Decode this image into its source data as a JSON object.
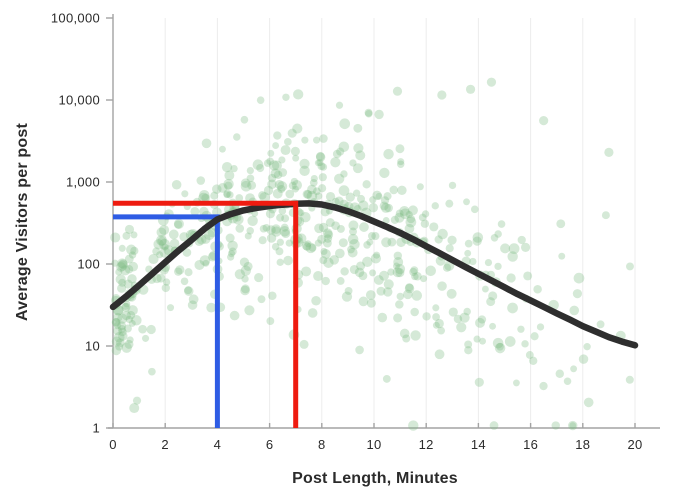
{
  "chart_data": {
    "type": "scatter",
    "title": "",
    "xlabel": "Post Length, Minutes",
    "ylabel": "Average Visitors per post",
    "x_axis": {
      "min": 0,
      "max": 20,
      "tick_labels": [
        "0",
        "2",
        "4",
        "6",
        "8",
        "10",
        "12",
        "14",
        "16",
        "18",
        "20"
      ],
      "tick_values": [
        0,
        2,
        4,
        6,
        8,
        10,
        12,
        14,
        16,
        18,
        20
      ]
    },
    "y_axis": {
      "scale": "log",
      "min": 1,
      "max": 100000,
      "tick_labels": [
        "1",
        "10",
        "100",
        "1,000",
        "10,000",
        "100,000"
      ],
      "tick_log_values": [
        0,
        1,
        2,
        3,
        4,
        5
      ]
    },
    "grid": {
      "vertical_at": [
        2,
        4,
        6,
        8,
        10,
        12,
        14,
        16,
        18,
        20
      ],
      "horizontal": false
    },
    "legend": "none",
    "series": [
      {
        "name": "posts-scatter",
        "type": "scatter",
        "color": "#7cba84",
        "opacity": 0.32,
        "approx_count": 580,
        "generator": {
          "seed": 7,
          "x_mean": 7.6,
          "x_sd": 4.9,
          "x_clamp": [
            0.07,
            20.25
          ],
          "log_noise_base": 0.38,
          "log_noise_slope": 0.016,
          "low_tail_prob": 0.13,
          "log_clamp": [
            0.03,
            4.23
          ],
          "radius_min": 3.4,
          "radius_spread": 2.0
        },
        "outliers": [
          [
            10.9,
            12800
          ],
          [
            12.6,
            11500
          ],
          [
            13.7,
            13500
          ],
          [
            14.5,
            16500
          ],
          [
            16.5,
            5600
          ],
          [
            19.0,
            2300
          ]
        ]
      },
      {
        "name": "trend-curve",
        "type": "line",
        "color": "#2e2e2e",
        "width": 6.5,
        "points": [
          [
            0,
            30
          ],
          [
            0.5,
            40
          ],
          [
            1,
            55
          ],
          [
            1.5,
            76
          ],
          [
            2,
            105
          ],
          [
            2.5,
            145
          ],
          [
            3,
            195
          ],
          [
            3.5,
            268
          ],
          [
            4,
            350
          ],
          [
            4.5,
            405
          ],
          [
            5,
            450
          ],
          [
            5.5,
            483
          ],
          [
            6,
            510
          ],
          [
            6.5,
            528
          ],
          [
            7,
            542
          ],
          [
            7.5,
            548
          ],
          [
            8,
            532
          ],
          [
            8.5,
            490
          ],
          [
            9,
            440
          ],
          [
            9.5,
            385
          ],
          [
            10,
            330
          ],
          [
            10.5,
            283
          ],
          [
            11,
            240
          ],
          [
            11.5,
            200
          ],
          [
            12,
            165
          ],
          [
            12.5,
            136
          ],
          [
            13,
            112
          ],
          [
            13.5,
            92
          ],
          [
            14,
            76
          ],
          [
            14.5,
            63
          ],
          [
            15,
            52
          ],
          [
            15.5,
            43
          ],
          [
            16,
            36
          ],
          [
            16.5,
            30
          ],
          [
            17,
            25
          ],
          [
            17.5,
            21
          ],
          [
            18,
            17.5
          ],
          [
            18.5,
            15
          ],
          [
            19,
            12.8
          ],
          [
            19.5,
            11.3
          ],
          [
            20,
            10.2
          ]
        ]
      },
      {
        "name": "four-minute-marker",
        "type": "annotation-lines",
        "color": "#2e5ce4",
        "width": 5,
        "x": 4,
        "value": 375
      },
      {
        "name": "seven-minute-marker",
        "type": "annotation-lines",
        "color": "#ee1b10",
        "width": 5,
        "x": 7,
        "value": 550
      }
    ],
    "colors": {
      "axis": "#a3a3a3",
      "grid": "#ececec",
      "labels": "#2b2b2b",
      "background": "#ffffff"
    }
  }
}
